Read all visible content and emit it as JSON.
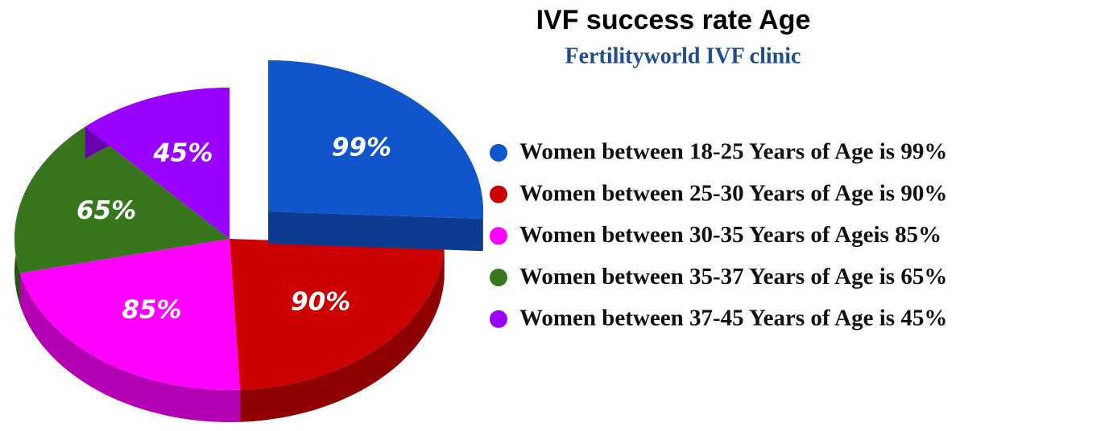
{
  "chart_data": {
    "type": "pie",
    "title": "IVF success rate Age",
    "subtitle": "Fertilityworld IVF clinic",
    "categories": [
      "Women between 18-25 Years of Age is 99%",
      "Women between 25-30 Years of Age is 90%",
      "Women between 30-35 Years of Ageis 85%",
      "Women between 35-37 Years of Age is 65%",
      "Women between 37-45 Years of Age is 45%"
    ],
    "values": [
      99,
      90,
      85,
      65,
      45
    ],
    "value_labels": [
      "99%",
      "90%",
      "85%",
      "65%",
      "45%"
    ],
    "colors": [
      "#1155cc",
      "#cc0000",
      "#ff00ff",
      "#38761d",
      "#9900ff"
    ],
    "exploded": [
      0
    ],
    "legend": "right"
  }
}
